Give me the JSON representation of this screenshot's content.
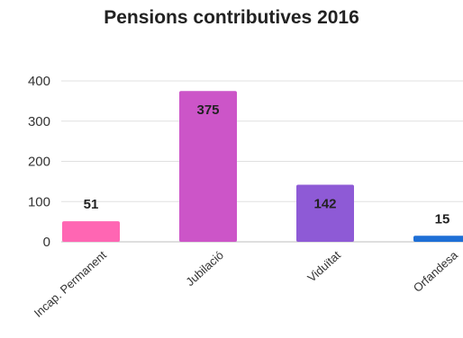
{
  "chart_data": {
    "type": "bar",
    "title": "Pensions contributives 2016",
    "categories": [
      "Incap. Permanent",
      "Jubilació",
      "Viduïtat",
      "Orfandesa"
    ],
    "values": [
      51,
      375,
      142,
      15
    ],
    "value_labels": [
      "51",
      "375",
      "142",
      "15"
    ],
    "colors": [
      "#ff66b3",
      "#cc55c8",
      "#8e5ad6",
      "#1e6fd6"
    ],
    "xlabel": "",
    "ylabel": "",
    "ylim": [
      0,
      400
    ],
    "y_ticks": [
      0,
      100,
      200,
      300,
      400
    ],
    "grid": true,
    "legend": "none"
  }
}
